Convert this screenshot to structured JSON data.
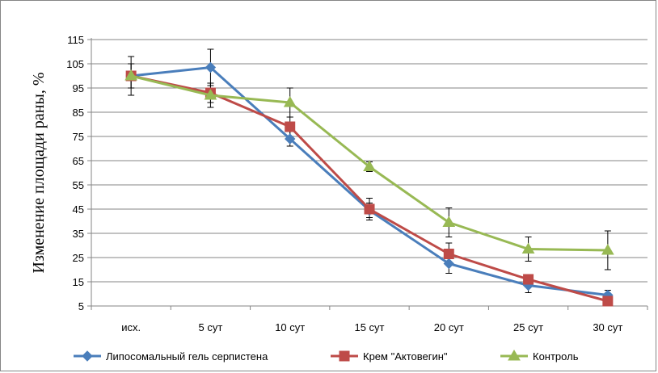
{
  "chart_data": {
    "type": "line",
    "title": "",
    "xlabel": "",
    "ylabel": "Изменение площади раны, %",
    "categories": [
      "исх.",
      "5 сут",
      "10 сут",
      "15 сут",
      "20 сут",
      "25 сут",
      "30 сут"
    ],
    "yticks": [
      "5",
      "15",
      "25",
      "35",
      "45",
      "55",
      "65",
      "75",
      "85",
      "95",
      "105",
      "115"
    ],
    "ylim": [
      5,
      115
    ],
    "grid": true,
    "legend_position": "bottom",
    "series": [
      {
        "name": "Липосомальный гель серпистена",
        "color": "#4a7ebb",
        "marker": "diamond",
        "values": [
          100,
          103.5,
          74,
          44.5,
          22.5,
          13.5,
          9.5
        ],
        "errors": [
          5,
          7.5,
          3,
          3,
          4,
          3,
          2
        ]
      },
      {
        "name": "Крем \"Актовегин\"",
        "color": "#be4b48",
        "marker": "square",
        "values": [
          100,
          93,
          79,
          45,
          26.5,
          16,
          7
        ],
        "errors": [
          5,
          4,
          4,
          4.5,
          4.5,
          2,
          1.5
        ]
      },
      {
        "name": "Контроль",
        "color": "#98b954",
        "marker": "triangle",
        "values": [
          100,
          92,
          89,
          62.5,
          39.5,
          28.5,
          28
        ],
        "errors": [
          8,
          5,
          6,
          2,
          6,
          5,
          8
        ]
      }
    ]
  }
}
